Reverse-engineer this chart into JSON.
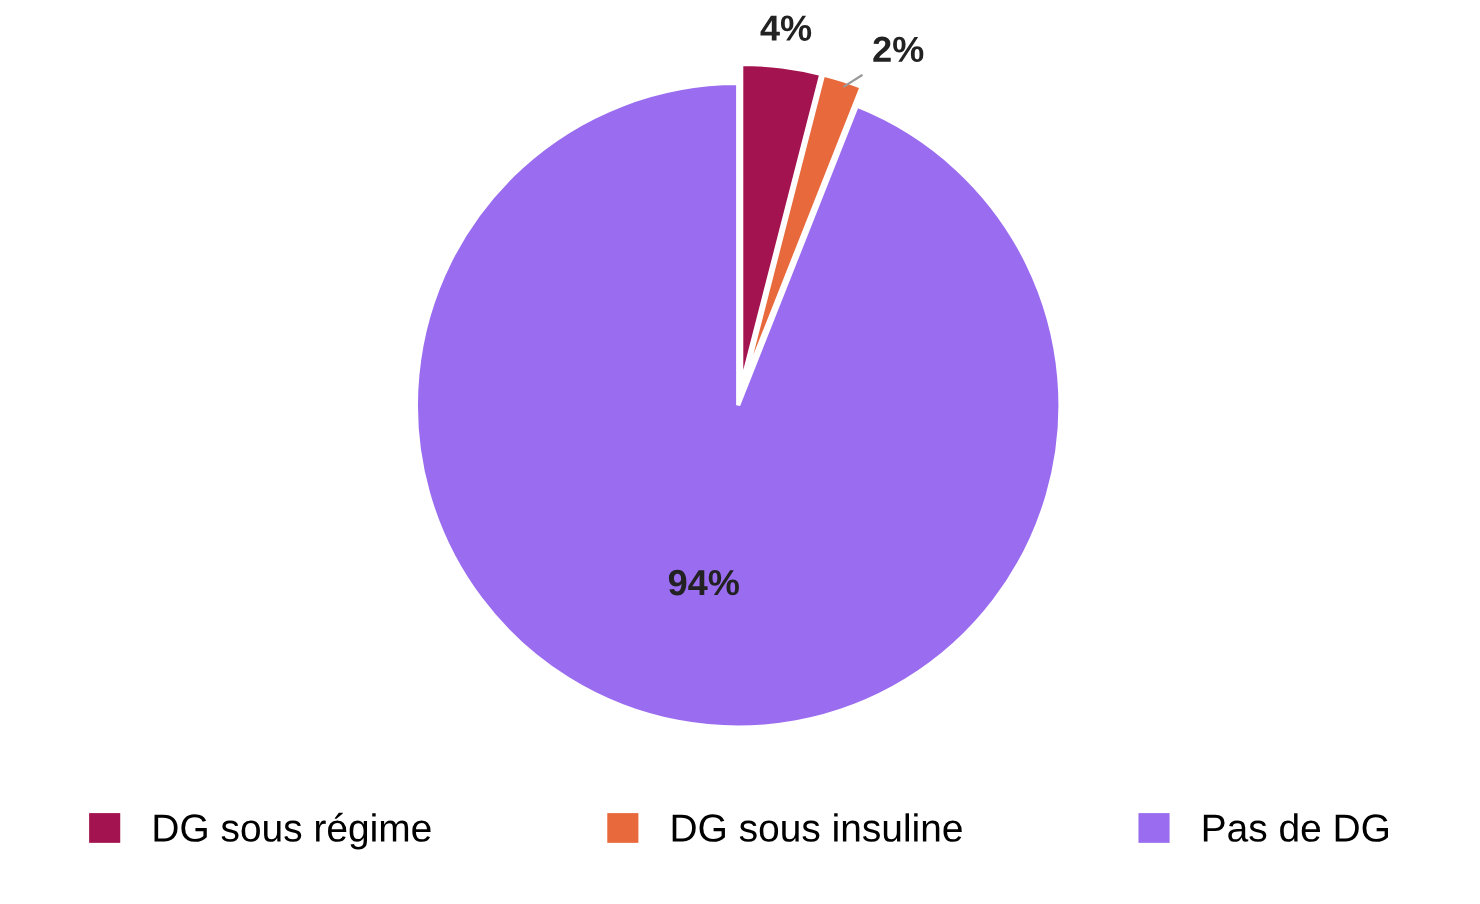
{
  "chart_data": {
    "type": "pie",
    "categories": [
      "DG sous régime",
      "DG sous insuline",
      "Pas de DG"
    ],
    "values": [
      4,
      2,
      94
    ],
    "colors": [
      "#a3134f",
      "#e8693c",
      "#9a6cf0"
    ],
    "value_labels": [
      "4%",
      "2%",
      "94%"
    ],
    "legend": "bottom"
  }
}
